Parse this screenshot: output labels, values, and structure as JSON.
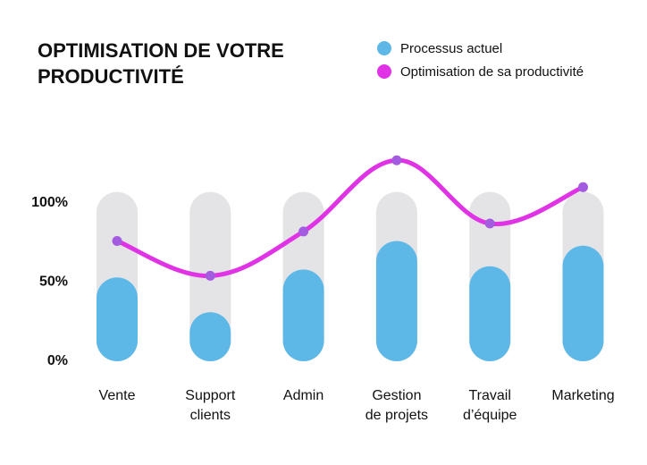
{
  "chart_data": {
    "type": "bar",
    "title": [
      "OPTIMISATION DE VOTRE",
      "PRODUCTIVITÉ"
    ],
    "categories": [
      [
        "Vente"
      ],
      [
        "Support",
        "clients"
      ],
      [
        "Admin"
      ],
      [
        "Gestion",
        "de projets"
      ],
      [
        "Travail",
        "d’équipe"
      ],
      [
        "Marketing"
      ]
    ],
    "y_ticks": [
      {
        "value": 0,
        "label": "0%"
      },
      {
        "value": 50,
        "label": "50%"
      },
      {
        "value": 100,
        "label": "100%"
      }
    ],
    "ylim": [
      0,
      130
    ],
    "grid": false,
    "legend_position": "top-right",
    "series": [
      {
        "name": "Processus actuel",
        "kind": "bar",
        "color": "#5DB8E8",
        "values": [
          53,
          31,
          58,
          76,
          60,
          73
        ]
      },
      {
        "name": "Optimisation de sa productivité",
        "kind": "line",
        "color": "#E033E6",
        "marker_color": "#A35BE0",
        "values": [
          76,
          54,
          82,
          127,
          87,
          110
        ]
      }
    ],
    "track": {
      "value": 107,
      "color": "#E4E4E6"
    }
  }
}
